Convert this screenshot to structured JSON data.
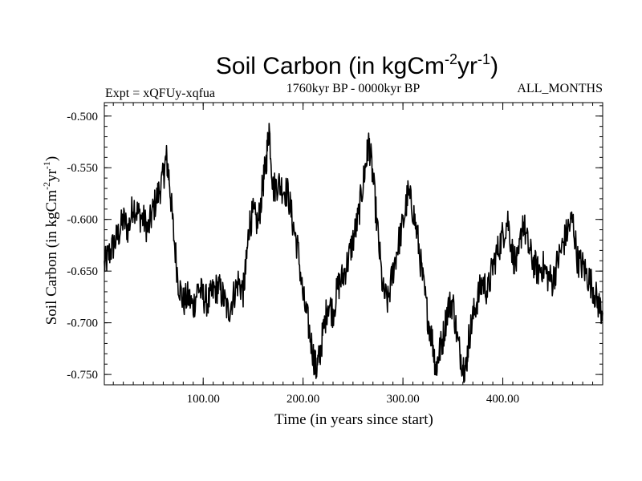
{
  "colors": {
    "background": "#ffffff",
    "line": "#000000",
    "axis": "#000000"
  },
  "chart_data": {
    "type": "line",
    "title": "Soil Carbon (in kgCm",
    "title_sup1": "-2",
    "title_mid": "yr",
    "title_sup2": "-1",
    "title_end": ")",
    "subtitle": "1760kyr BP - 0000kyr BP",
    "experiment_label": "Expt = xQFUy-xqfua",
    "months_label": "ALL_MONTHS",
    "xlabel": "Time (in years since start)",
    "ylabel": "Soil Carbon (in kgCm",
    "ylabel_sup1": "-2",
    "ylabel_mid": "yr",
    "ylabel_sup2": "-1",
    "ylabel_end": ")",
    "xlim": [
      1,
      500
    ],
    "ylim": [
      -0.76,
      -0.487
    ],
    "x_ticks": [
      {
        "value": 100,
        "label": "100.00"
      },
      {
        "value": 200,
        "label": "200.00"
      },
      {
        "value": 300,
        "label": "300.00"
      },
      {
        "value": 400,
        "label": "400.00"
      }
    ],
    "y_ticks": [
      {
        "value": -0.5,
        "label": "-0.500"
      },
      {
        "value": -0.55,
        "label": "-0.550"
      },
      {
        "value": -0.6,
        "label": "-0.600"
      },
      {
        "value": -0.65,
        "label": "-0.650"
      },
      {
        "value": -0.7,
        "label": "-0.700"
      },
      {
        "value": -0.75,
        "label": "-0.750"
      }
    ],
    "x_minor_step": 10,
    "y_minor_step": 0.01,
    "grid": false,
    "series": [
      {
        "name": "Soil Carbon",
        "x": [
          1,
          5,
          10,
          15,
          20,
          25,
          30,
          35,
          40,
          45,
          50,
          55,
          60,
          63,
          66,
          70,
          75,
          80,
          85,
          90,
          95,
          100,
          105,
          110,
          115,
          120,
          125,
          130,
          135,
          140,
          143,
          146,
          150,
          155,
          160,
          163,
          166,
          170,
          175,
          180,
          185,
          190,
          195,
          200,
          205,
          210,
          213,
          216,
          220,
          225,
          230,
          235,
          240,
          245,
          250,
          255,
          260,
          263,
          266,
          270,
          275,
          280,
          285,
          290,
          295,
          300,
          305,
          310,
          315,
          320,
          325,
          330,
          333,
          336,
          340,
          345,
          350,
          355,
          360,
          363,
          366,
          370,
          375,
          380,
          385,
          390,
          395,
          400,
          405,
          410,
          415,
          420,
          425,
          430,
          435,
          440,
          445,
          450,
          455,
          460,
          465,
          470,
          475,
          480,
          485,
          490,
          495,
          500
        ],
        "y": [
          -0.645,
          -0.635,
          -0.625,
          -0.615,
          -0.6,
          -0.61,
          -0.585,
          -0.595,
          -0.6,
          -0.61,
          -0.59,
          -0.575,
          -0.56,
          -0.54,
          -0.56,
          -0.61,
          -0.66,
          -0.68,
          -0.675,
          -0.685,
          -0.665,
          -0.675,
          -0.68,
          -0.67,
          -0.665,
          -0.675,
          -0.69,
          -0.675,
          -0.66,
          -0.67,
          -0.645,
          -0.605,
          -0.595,
          -0.605,
          -0.565,
          -0.545,
          -0.51,
          -0.57,
          -0.565,
          -0.57,
          -0.575,
          -0.605,
          -0.63,
          -0.675,
          -0.7,
          -0.73,
          -0.745,
          -0.735,
          -0.71,
          -0.68,
          -0.69,
          -0.665,
          -0.655,
          -0.64,
          -0.62,
          -0.6,
          -0.565,
          -0.545,
          -0.525,
          -0.56,
          -0.615,
          -0.67,
          -0.68,
          -0.65,
          -0.625,
          -0.605,
          -0.575,
          -0.59,
          -0.62,
          -0.66,
          -0.695,
          -0.72,
          -0.745,
          -0.73,
          -0.715,
          -0.685,
          -0.68,
          -0.72,
          -0.74,
          -0.745,
          -0.715,
          -0.695,
          -0.675,
          -0.66,
          -0.67,
          -0.645,
          -0.63,
          -0.615,
          -0.6,
          -0.635,
          -0.645,
          -0.6,
          -0.625,
          -0.64,
          -0.65,
          -0.645,
          -0.655,
          -0.66,
          -0.64,
          -0.625,
          -0.61,
          -0.6,
          -0.64,
          -0.645,
          -0.655,
          -0.665,
          -0.68,
          -0.69
        ]
      }
    ]
  }
}
